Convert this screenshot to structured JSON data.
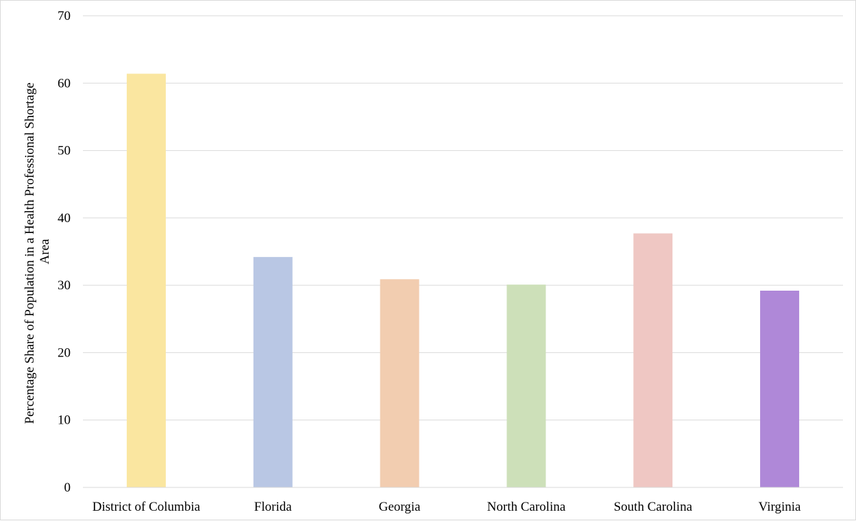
{
  "chart_data": {
    "type": "bar",
    "title": "",
    "xlabel": "",
    "ylabel_lines": [
      "Percentage Share of Population in a Health Professional Shortage",
      "Area"
    ],
    "categories": [
      "District of Columbia",
      "Florida",
      "Georgia",
      "North Carolina",
      "South Carolina",
      "Virginia"
    ],
    "values": [
      61.4,
      34.2,
      30.9,
      30.1,
      37.7,
      29.2
    ],
    "colors": [
      "#fae6a0",
      "#b9c7e4",
      "#f2cdb0",
      "#cde0b9",
      "#efc7c3",
      "#af88d8"
    ],
    "ylim": [
      0,
      70
    ],
    "yticks": [
      0,
      10,
      20,
      30,
      40,
      50,
      60,
      70
    ],
    "grid": true,
    "legend": "none"
  }
}
